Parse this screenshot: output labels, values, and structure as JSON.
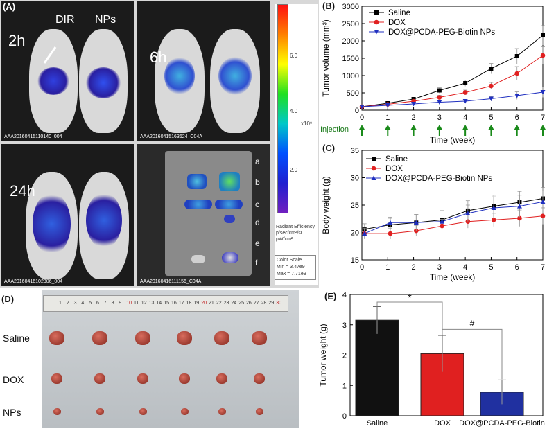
{
  "panel_labels": {
    "a": "(A)",
    "b": "(B)",
    "c": "(C)",
    "d": "(D)",
    "e": "(E)"
  },
  "imaging": {
    "col_labels": [
      "DIR",
      "NPs"
    ],
    "time_labels": [
      "2h",
      "6h",
      "24h"
    ],
    "organ_letters": [
      "a",
      "b",
      "c",
      "d",
      "e",
      "f"
    ],
    "footers": [
      "AAA20160415110140_004",
      "AAA20160415163624_C04A",
      "AAA20160416102306_004",
      "AAA20160416111156_C04A"
    ],
    "colorbar": {
      "ticks": [
        "6.0",
        "4.0",
        "2.0"
      ],
      "exponent": "x10⁹",
      "title_lines": [
        "Radiant Efficiency",
        "p/sec/cm²/sr",
        "μW/cm²"
      ],
      "scale_lines": [
        "Color Scale",
        "Min = 3.47e9",
        "Max = 7.71e9"
      ]
    }
  },
  "chart_data": [
    {
      "type": "line",
      "panel": "B",
      "xlabel": "Time (week)",
      "ylabel": "Tumor volume (mm³)",
      "x": [
        0,
        1,
        2,
        3,
        4,
        5,
        6,
        7
      ],
      "xlim": [
        0,
        7
      ],
      "ylim": [
        0,
        3000
      ],
      "yticks": [
        0,
        500,
        1000,
        1500,
        2000,
        2500,
        3000
      ],
      "annotation": "Injection",
      "series": [
        {
          "name": "Saline",
          "color": "#000000",
          "marker": "square",
          "values": [
            100,
            200,
            320,
            570,
            780,
            1200,
            1560,
            2160
          ],
          "err": [
            20,
            40,
            50,
            80,
            90,
            150,
            220,
            280
          ]
        },
        {
          "name": "DOX",
          "color": "#e02020",
          "marker": "circle",
          "values": [
            100,
            170,
            260,
            370,
            510,
            700,
            1060,
            1580
          ],
          "err": [
            20,
            30,
            40,
            60,
            70,
            100,
            200,
            250
          ]
        },
        {
          "name": "DOX@PCDA-PEG-Biotin NPs",
          "color": "#2030c0",
          "marker": "triangle-down",
          "values": [
            100,
            140,
            180,
            230,
            260,
            330,
            420,
            520
          ],
          "err": [
            20,
            25,
            30,
            40,
            50,
            70,
            110,
            150
          ]
        }
      ],
      "legend": "top-left"
    },
    {
      "type": "line",
      "panel": "C",
      "xlabel": "Time (week)",
      "ylabel": "Body weight (g)",
      "x": [
        0.1,
        1.1,
        2.1,
        3.1,
        4.1,
        5.1,
        6.1,
        7
      ],
      "xlim": [
        0,
        7
      ],
      "ylim": [
        15,
        35
      ],
      "yticks": [
        15,
        20,
        25,
        30,
        35
      ],
      "series": [
        {
          "name": "Saline",
          "color": "#000000",
          "marker": "square",
          "values": [
            20.6,
            21.4,
            21.8,
            22.3,
            24.0,
            24.8,
            25.5,
            26.2
          ],
          "err": [
            1.0,
            1.2,
            1.5,
            2.0,
            1.8,
            2.0,
            2.0,
            2.0
          ]
        },
        {
          "name": "DOX",
          "color": "#e02020",
          "marker": "circle",
          "values": [
            19.8,
            19.8,
            20.3,
            21.2,
            22.0,
            22.3,
            22.6,
            23.0
          ],
          "err": [
            0.8,
            1.0,
            1.0,
            1.2,
            1.2,
            1.2,
            1.5,
            1.5
          ]
        },
        {
          "name": "DOX@PCDA-PEG-Biotin NPs",
          "color": "#2030c0",
          "marker": "triangle-up",
          "values": [
            19.8,
            21.8,
            21.8,
            22.0,
            23.5,
            24.5,
            24.8,
            25.6
          ],
          "err": [
            1.0,
            1.0,
            1.5,
            2.0,
            1.5,
            2.0,
            2.0,
            2.0
          ]
        }
      ],
      "legend": "top-left"
    },
    {
      "type": "bar",
      "panel": "E",
      "categories": [
        "Saline",
        "DOX",
        "DOX@PCDA-PEG-Biotin"
      ],
      "values": [
        3.15,
        2.05,
        0.78
      ],
      "err": [
        0.45,
        0.6,
        0.4
      ],
      "colors": [
        "#111111",
        "#e02020",
        "#2030a0"
      ],
      "ylabel": "Tumor weight (g)",
      "ylim": [
        0,
        4
      ],
      "yticks": [
        0,
        1,
        2,
        3,
        4
      ],
      "significance": [
        "*",
        "#"
      ]
    }
  ],
  "photo": {
    "row_labels": [
      "Saline",
      "DOX",
      "NPs"
    ],
    "ruler_numbers": [
      "1",
      "2",
      "3",
      "4",
      "5",
      "6",
      "7",
      "8",
      "9",
      "10",
      "11",
      "12",
      "13",
      "14",
      "15",
      "16",
      "17",
      "18",
      "19",
      "20",
      "21",
      "22",
      "23",
      "24",
      "25",
      "26",
      "27",
      "28",
      "29",
      "30"
    ]
  }
}
